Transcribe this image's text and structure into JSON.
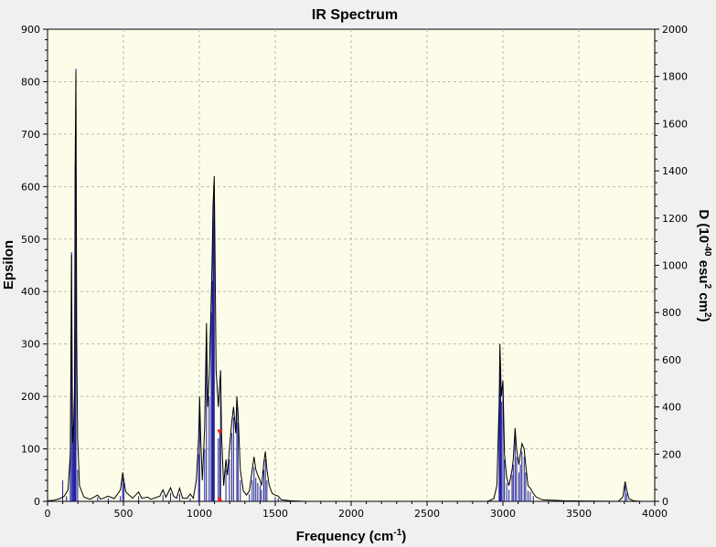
{
  "chart_data": {
    "type": "line",
    "title": "IR Spectrum",
    "xlabel": {
      "text": "Frequency (cm",
      "sup": "-1",
      "close": ")"
    },
    "ylabel": "Epsilon",
    "y2label": {
      "text1": "D (10",
      "sup1": "-40",
      "text2": " esu",
      "sup2": "2",
      "text3": " cm",
      "sup3": "2",
      "text4": ")"
    },
    "xlim": [
      0,
      4000
    ],
    "ylim": [
      0,
      900
    ],
    "y2lim": [
      0,
      2000
    ],
    "xticks": [
      0,
      500,
      1000,
      1500,
      2000,
      2500,
      3000,
      3500,
      4000
    ],
    "yticks": [
      0,
      100,
      200,
      300,
      400,
      500,
      600,
      700,
      800,
      900
    ],
    "y2ticks": [
      0,
      200,
      400,
      600,
      800,
      1000,
      1200,
      1400,
      1600,
      1800,
      2000
    ],
    "grid": true,
    "line_color": "#000000",
    "stick_color": "#1a1aa0",
    "marker_color": "#e0201a",
    "background_color": "#fcfce8",
    "marker": {
      "x": 1135,
      "epsilon": 130
    },
    "spectrum": [
      [
        0,
        1
      ],
      [
        40,
        2
      ],
      [
        80,
        5
      ],
      [
        110,
        10
      ],
      [
        135,
        22
      ],
      [
        150,
        90
      ],
      [
        158,
        470
      ],
      [
        165,
        110
      ],
      [
        172,
        150
      ],
      [
        178,
        215
      ],
      [
        182,
        640
      ],
      [
        187,
        820
      ],
      [
        192,
        300
      ],
      [
        198,
        120
      ],
      [
        210,
        30
      ],
      [
        240,
        8
      ],
      [
        280,
        4
      ],
      [
        330,
        12
      ],
      [
        350,
        4
      ],
      [
        400,
        10
      ],
      [
        440,
        5
      ],
      [
        480,
        22
      ],
      [
        495,
        55
      ],
      [
        502,
        42
      ],
      [
        515,
        18
      ],
      [
        560,
        6
      ],
      [
        600,
        18
      ],
      [
        620,
        6
      ],
      [
        660,
        8
      ],
      [
        680,
        4
      ],
      [
        740,
        10
      ],
      [
        760,
        22
      ],
      [
        780,
        8
      ],
      [
        810,
        26
      ],
      [
        830,
        10
      ],
      [
        850,
        6
      ],
      [
        870,
        25
      ],
      [
        890,
        6
      ],
      [
        920,
        6
      ],
      [
        940,
        14
      ],
      [
        960,
        6
      ],
      [
        980,
        40
      ],
      [
        995,
        120
      ],
      [
        1002,
        200
      ],
      [
        1010,
        110
      ],
      [
        1020,
        40
      ],
      [
        1035,
        140
      ],
      [
        1047,
        340
      ],
      [
        1055,
        180
      ],
      [
        1065,
        240
      ],
      [
        1078,
        380
      ],
      [
        1085,
        470
      ],
      [
        1090,
        560
      ],
      [
        1095,
        600
      ],
      [
        1098,
        620
      ],
      [
        1103,
        480
      ],
      [
        1110,
        250
      ],
      [
        1125,
        180
      ],
      [
        1140,
        250
      ],
      [
        1147,
        120
      ],
      [
        1160,
        30
      ],
      [
        1175,
        80
      ],
      [
        1185,
        50
      ],
      [
        1198,
        100
      ],
      [
        1213,
        150
      ],
      [
        1225,
        180
      ],
      [
        1240,
        130
      ],
      [
        1247,
        200
      ],
      [
        1255,
        170
      ],
      [
        1270,
        60
      ],
      [
        1290,
        20
      ],
      [
        1310,
        12
      ],
      [
        1330,
        20
      ],
      [
        1348,
        60
      ],
      [
        1360,
        85
      ],
      [
        1372,
        60
      ],
      [
        1385,
        50
      ],
      [
        1400,
        40
      ],
      [
        1410,
        30
      ],
      [
        1425,
        75
      ],
      [
        1435,
        95
      ],
      [
        1445,
        60
      ],
      [
        1460,
        30
      ],
      [
        1480,
        15
      ],
      [
        1500,
        12
      ],
      [
        1520,
        10
      ],
      [
        1540,
        3
      ],
      [
        1600,
        1
      ],
      [
        1700,
        0
      ],
      [
        2900,
        0
      ],
      [
        2940,
        5
      ],
      [
        2960,
        30
      ],
      [
        2975,
        190
      ],
      [
        2980,
        300
      ],
      [
        2985,
        250
      ],
      [
        2990,
        200
      ],
      [
        3000,
        230
      ],
      [
        3010,
        90
      ],
      [
        3025,
        45
      ],
      [
        3040,
        30
      ],
      [
        3060,
        60
      ],
      [
        3068,
        80
      ],
      [
        3080,
        140
      ],
      [
        3090,
        100
      ],
      [
        3105,
        70
      ],
      [
        3115,
        90
      ],
      [
        3125,
        110
      ],
      [
        3140,
        100
      ],
      [
        3150,
        70
      ],
      [
        3165,
        30
      ],
      [
        3180,
        25
      ],
      [
        3200,
        15
      ],
      [
        3220,
        8
      ],
      [
        3260,
        3
      ],
      [
        3400,
        1
      ],
      [
        3760,
        0
      ],
      [
        3790,
        8
      ],
      [
        3805,
        38
      ],
      [
        3815,
        22
      ],
      [
        3830,
        5
      ],
      [
        3860,
        1
      ],
      [
        3900,
        0
      ],
      [
        4000,
        0
      ]
    ],
    "sticks": [
      [
        100,
        40
      ],
      [
        125,
        10
      ],
      [
        150,
        95
      ],
      [
        158,
        475
      ],
      [
        165,
        110
      ],
      [
        172,
        150
      ],
      [
        178,
        215
      ],
      [
        182,
        640
      ],
      [
        187,
        825
      ],
      [
        198,
        60
      ],
      [
        330,
        8
      ],
      [
        400,
        6
      ],
      [
        480,
        10
      ],
      [
        495,
        45
      ],
      [
        502,
        35
      ],
      [
        600,
        10
      ],
      [
        760,
        12
      ],
      [
        810,
        16
      ],
      [
        870,
        14
      ],
      [
        940,
        6
      ],
      [
        995,
        90
      ],
      [
        1002,
        180
      ],
      [
        1035,
        100
      ],
      [
        1047,
        320
      ],
      [
        1065,
        200
      ],
      [
        1078,
        360
      ],
      [
        1085,
        420
      ],
      [
        1090,
        540
      ],
      [
        1095,
        580
      ],
      [
        1098,
        600
      ],
      [
        1125,
        120
      ],
      [
        1140,
        220
      ],
      [
        1175,
        60
      ],
      [
        1198,
        80
      ],
      [
        1213,
        130
      ],
      [
        1225,
        160
      ],
      [
        1247,
        180
      ],
      [
        1255,
        150
      ],
      [
        1270,
        40
      ],
      [
        1330,
        14
      ],
      [
        1348,
        40
      ],
      [
        1360,
        65
      ],
      [
        1372,
        45
      ],
      [
        1385,
        35
      ],
      [
        1400,
        30
      ],
      [
        1410,
        22
      ],
      [
        1425,
        60
      ],
      [
        1435,
        80
      ],
      [
        1445,
        40
      ],
      [
        1500,
        8
      ],
      [
        1520,
        6
      ],
      [
        2975,
        170
      ],
      [
        2980,
        285
      ],
      [
        2985,
        240
      ],
      [
        2990,
        190
      ],
      [
        3000,
        210
      ],
      [
        3010,
        80
      ],
      [
        3025,
        35
      ],
      [
        3040,
        22
      ],
      [
        3060,
        50
      ],
      [
        3068,
        70
      ],
      [
        3080,
        130
      ],
      [
        3090,
        85
      ],
      [
        3105,
        55
      ],
      [
        3115,
        70
      ],
      [
        3125,
        95
      ],
      [
        3140,
        85
      ],
      [
        3150,
        55
      ],
      [
        3165,
        20
      ],
      [
        3180,
        18
      ],
      [
        3200,
        10
      ],
      [
        3805,
        30
      ],
      [
        3815,
        15
      ]
    ]
  }
}
